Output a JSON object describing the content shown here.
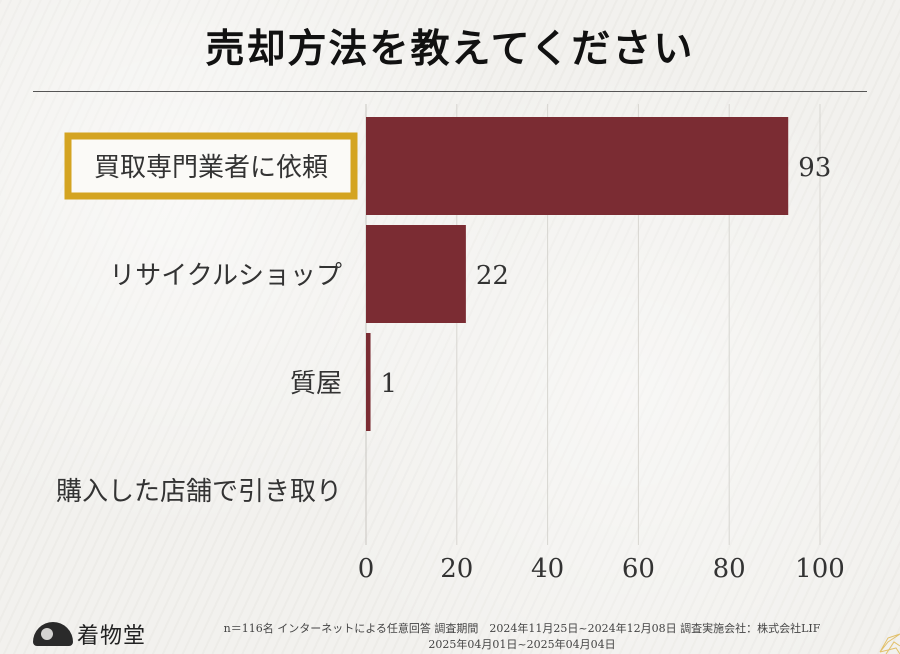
{
  "title": "売却方法を教えてください",
  "chart_data": {
    "type": "bar",
    "orientation": "horizontal",
    "categories": [
      "買取専門業者に依頼",
      "リサイクルショップ",
      "質屋",
      "購入した店舗で引き取り"
    ],
    "values": [
      93,
      22,
      1,
      0
    ],
    "value_labels": [
      "93",
      "22",
      "1",
      ""
    ],
    "highlighted_category": "買取専門業者に依頼",
    "xlim": [
      0,
      100
    ],
    "xticks": [
      "0",
      "20",
      "40",
      "60",
      "80",
      "100"
    ],
    "xtick_values": [
      0,
      20,
      40,
      60,
      80,
      100
    ],
    "grid": "vertical",
    "bar_color": "#7b2c33",
    "highlight_color": "#d4a421"
  },
  "footer": {
    "logo_text": "着物堂",
    "note_line1": "n＝116名 インターネットによる任意回答 調査期間　2024年11月25日~2024年12月08日 調査実施会社：株式会社LIF",
    "note_line2": "2025年04月01日~2025年04月04日"
  },
  "icons": {
    "logo": "fan-logo-icon",
    "decoration": "flower-pattern-icon"
  }
}
